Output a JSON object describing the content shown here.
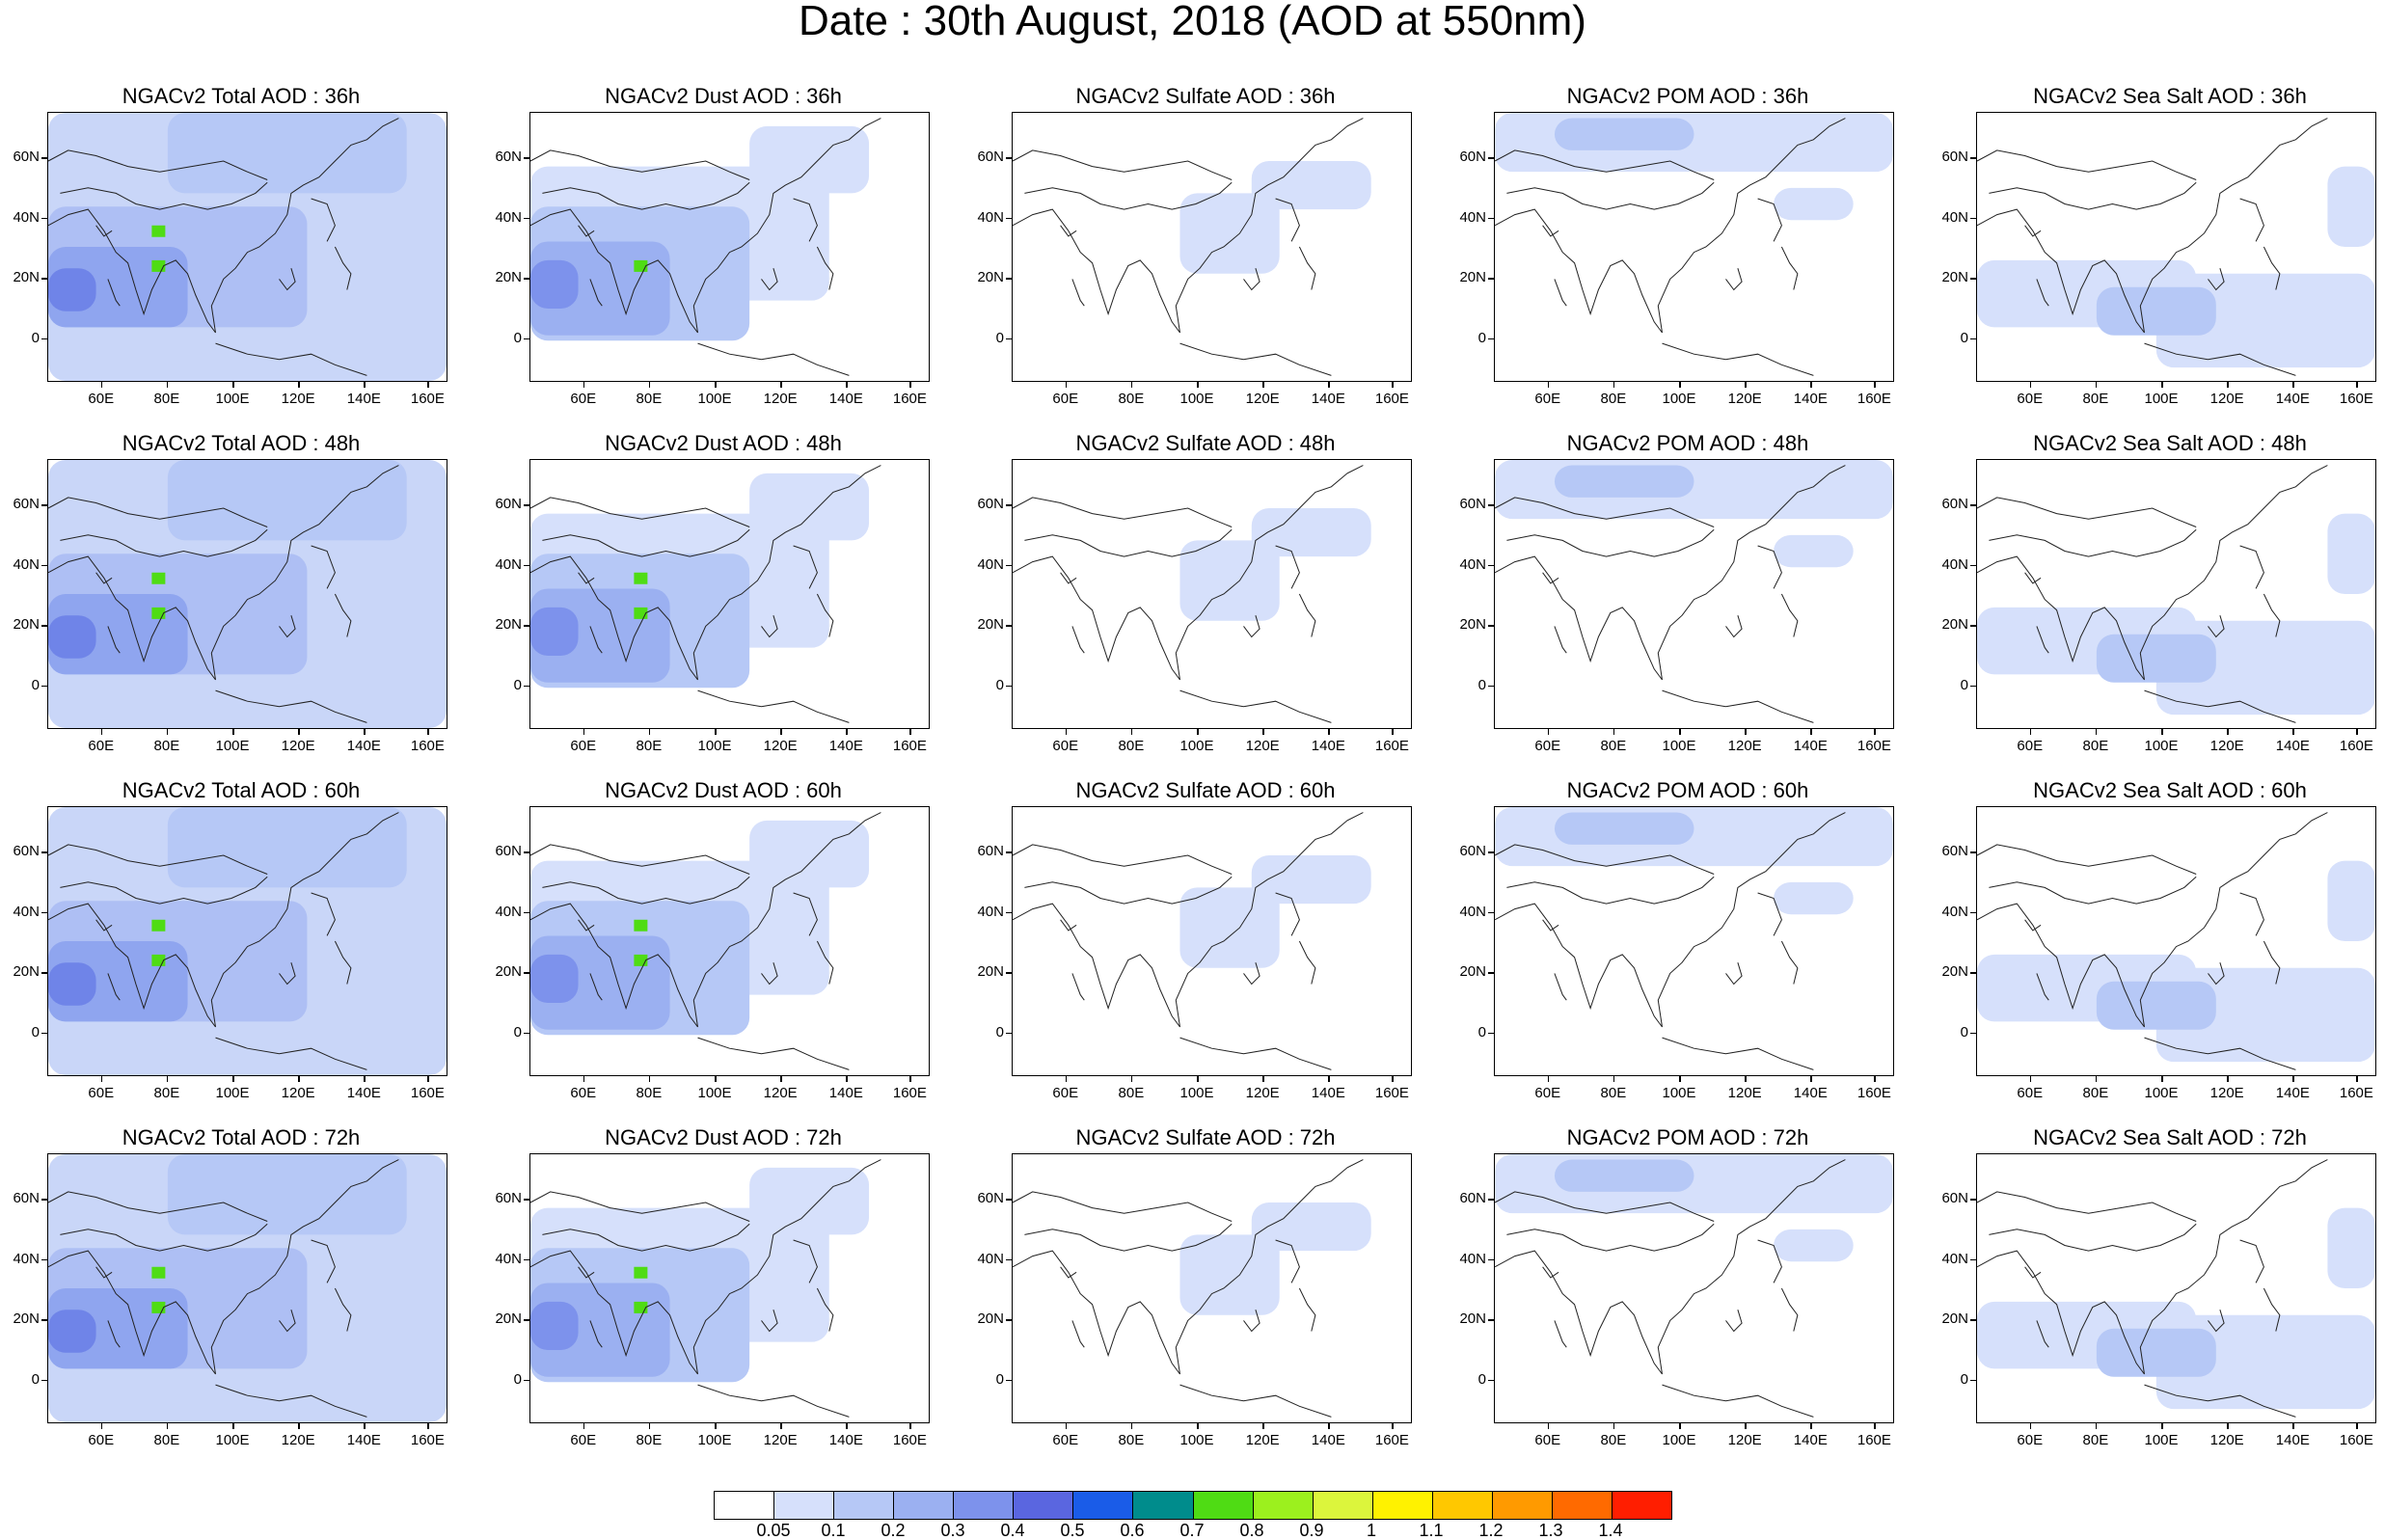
{
  "title": "Date : 30th August, 2018 (AOD at 550nm)",
  "panel_titles": [
    [
      "NGACv2 Total AOD : 36h",
      "NGACv2 Dust AOD : 36h",
      "NGACv2 Sulfate AOD : 36h",
      "NGACv2 POM AOD : 36h",
      "NGACv2 Sea Salt AOD : 36h"
    ],
    [
      "NGACv2 Total AOD : 48h",
      "NGACv2 Dust AOD : 48h",
      "NGACv2 Sulfate AOD : 48h",
      "NGACv2 POM AOD : 48h",
      "NGACv2 Sea Salt AOD : 48h"
    ],
    [
      "NGACv2 Total AOD : 60h",
      "NGACv2 Dust AOD : 60h",
      "NGACv2 Sulfate AOD : 60h",
      "NGACv2 POM AOD : 60h",
      "NGACv2 Sea Salt AOD : 60h"
    ],
    [
      "NGACv2 Total AOD : 72h",
      "NGACv2 Dust AOD : 72h",
      "NGACv2 Sulfate AOD : 72h",
      "NGACv2 POM AOD : 72h",
      "NGACv2 Sea Salt  AOD : 72h"
    ]
  ],
  "lat_ticks": [
    "60N",
    "40N",
    "20N",
    "0"
  ],
  "lon_ticks": [
    "60E",
    "80E",
    "100E",
    "120E",
    "140E",
    "160E"
  ],
  "colorbar": {
    "labels": [
      "0.05",
      "0.1",
      "0.2",
      "0.3",
      "0.4",
      "0.5",
      "0.6",
      "0.7",
      "0.8",
      "0.9",
      "1",
      "1.1",
      "1.2",
      "1.3",
      "1.4"
    ],
    "colors": [
      "#ffffff",
      "#d6e0fb",
      "#b6c8f6",
      "#9bb0f1",
      "#7d92ec",
      "#5a66e0",
      "#1a5ce8",
      "#008c8c",
      "#4fdc14",
      "#9cf01e",
      "#dcf53c",
      "#fff200",
      "#ffc800",
      "#ff9a00",
      "#ff6a00",
      "#ff1e00"
    ]
  }
}
